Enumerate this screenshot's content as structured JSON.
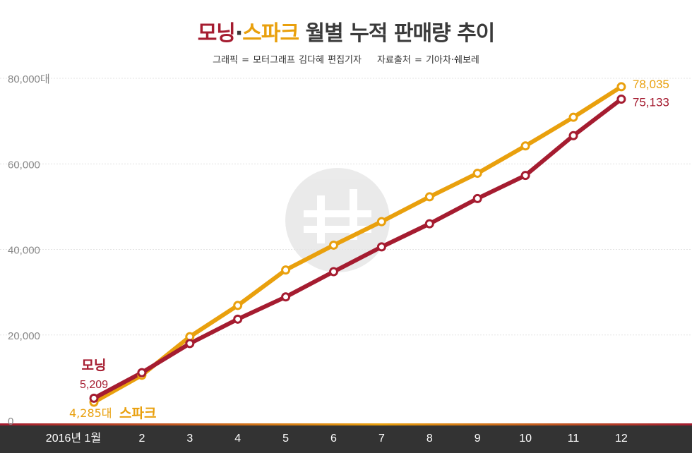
{
  "header": {
    "title_morning": "모닝",
    "title_dot": "·",
    "title_spark": "스파크",
    "title_rest": " 월별 누적 판매량 추이",
    "credit_graphic": "그래픽 = 모터그래프 김다혜 편집기자",
    "credit_source": "자료출처 = 기아차·쉐보레"
  },
  "colors": {
    "morning": "#a51c30",
    "spark": "#e9a00d",
    "grid": "#e3e3e3",
    "axis_bar": "#333333"
  },
  "chart_data": {
    "type": "line",
    "title": "모닝·스파크 월별 누적 판매량 추이",
    "categories": [
      "2016년 1월",
      "2",
      "3",
      "4",
      "5",
      "6",
      "7",
      "8",
      "9",
      "10",
      "11",
      "12"
    ],
    "ylim": [
      0,
      80000
    ],
    "y_ticks": [
      "0",
      "20,000",
      "40,000",
      "60,000",
      "80,000대"
    ],
    "y_tick_values": [
      0,
      20000,
      40000,
      60000,
      80000
    ],
    "grid": true,
    "legend": "inline labels at series start",
    "series": [
      {
        "name": "스파크",
        "color": "#e9a00d",
        "values": [
          4285,
          10600,
          19600,
          26900,
          35200,
          41000,
          46500,
          52300,
          57800,
          64200,
          70900,
          78035
        ],
        "start_label": "4,285대",
        "end_label": "78,035"
      },
      {
        "name": "모닝",
        "color": "#a51c30",
        "values": [
          5209,
          11200,
          18000,
          23700,
          28900,
          34800,
          40600,
          46000,
          51900,
          57300,
          66600,
          75133
        ],
        "start_label": "5,209",
        "end_label": "75,133"
      }
    ]
  }
}
